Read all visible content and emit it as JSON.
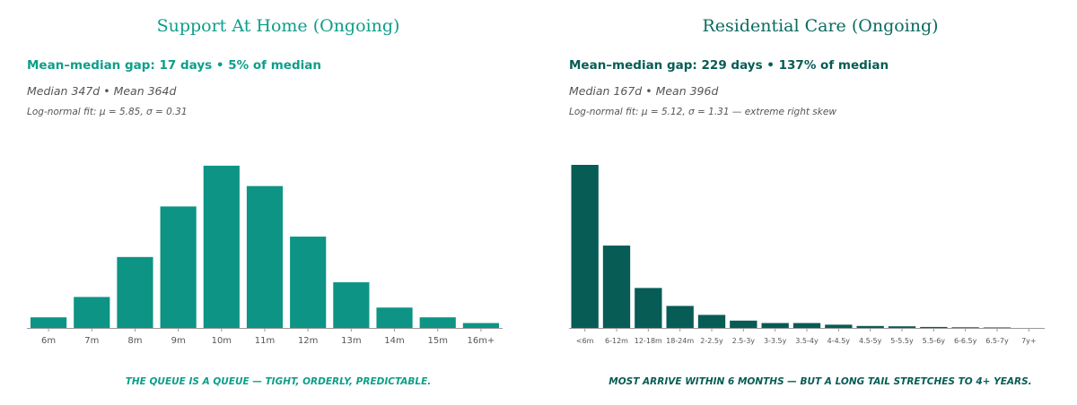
{
  "chart_data": [
    {
      "type": "bar",
      "title": "Support At Home (Ongoing)",
      "gap_label": "Mean–median gap: 17 days",
      "gap_pct": "5% of median",
      "median_label": "Median 347d",
      "mean_label": "Mean 364d",
      "fit_label": "Log-normal fit: μ = 5.85, σ = 0.31",
      "caption": "THE QUEUE IS A QUEUE — TIGHT, ORDERLY, PREDICTABLE.",
      "xlabel": "",
      "ylabel": "",
      "grid": false,
      "categories": [
        "6m",
        "7m",
        "8m",
        "9m",
        "10m",
        "11m",
        "12m",
        "13m",
        "14m",
        "15m",
        "16m+"
      ],
      "values": [
        6.5,
        19,
        43.5,
        74.5,
        99.5,
        87,
        56,
        28,
        12.5,
        6.5,
        3
      ],
      "ylim": [
        0,
        100
      ],
      "bar_color": "#0d9485"
    },
    {
      "type": "bar",
      "title": "Residential Care (Ongoing)",
      "gap_label": "Mean–median gap: 229 days",
      "gap_pct": "137% of median",
      "median_label": "Median 167d",
      "mean_label": "Mean 396d",
      "fit_label": "Log-normal fit: μ = 5.12, σ = 1.31 — extreme right skew",
      "caption": "MOST ARRIVE WITHIN 6 MONTHS — BUT A LONG TAIL STRETCHES TO 4+ YEARS.",
      "xlabel": "",
      "ylabel": "",
      "grid": false,
      "categories": [
        "<6m",
        "6-12m",
        "12-18m",
        "18-24m",
        "2-2.5y",
        "2.5-3y",
        "3-3.5y",
        "3.5-4y",
        "4-4.5y",
        "4.5-5y",
        "5-5.5y",
        "5.5-6y",
        "6-6.5y",
        "6.5-7y",
        "7y+"
      ],
      "values": [
        100,
        50.5,
        24.5,
        13.5,
        8,
        4.5,
        3,
        3,
        2,
        1.2,
        1,
        0.6,
        0.4,
        0.3,
        0
      ],
      "ylim": [
        0,
        100
      ],
      "bar_color": "#075c56"
    }
  ]
}
